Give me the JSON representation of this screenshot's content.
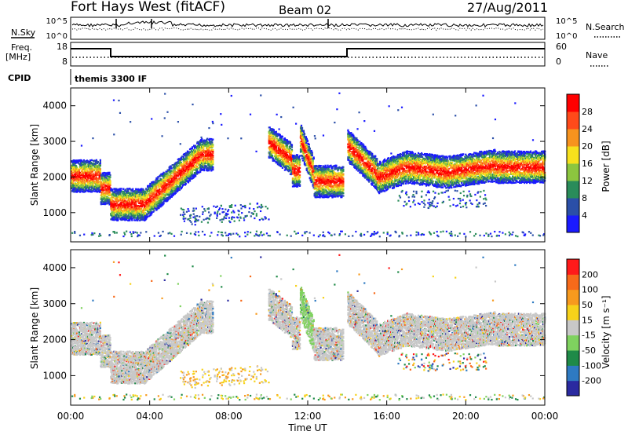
{
  "header": {
    "station": "Fort Hays West (fitACF)",
    "beam": "Beam 02",
    "date": "27/Aug/2011"
  },
  "noise_panel": {
    "left_label": "N.Sky",
    "right_label": "N.Search",
    "ticks_left": [
      "10^5",
      "10^0"
    ],
    "ticks_right": [
      "10^5",
      "10^0"
    ]
  },
  "freq_panel": {
    "left_label_1": "Freq.",
    "left_label_2": "[MHz]",
    "right_label": "Nave",
    "ticks_left": [
      "18",
      "8"
    ],
    "ticks_right": [
      "60",
      "0"
    ]
  },
  "cpid_panel": {
    "label": "CPID",
    "program": "themis 3300 IF"
  },
  "chart_data": [
    {
      "type": "heatmap",
      "name": "power",
      "ylabel": "Slant Range [km]",
      "ytick_labels": [
        "1000",
        "2000",
        "3000",
        "4000"
      ],
      "ylim": [
        180,
        4500
      ],
      "colorbar_title": "Power [dB]",
      "colorbar_ticks": [
        "4",
        "8",
        "12",
        "16",
        "20",
        "24",
        "28"
      ],
      "colorbar_colors": [
        "#1a1aff",
        "#2b4fa8",
        "#2a8c5a",
        "#8cc63f",
        "#f7e11d",
        "#f7931e",
        "#ff4a1a",
        "#ff0000"
      ]
    },
    {
      "type": "heatmap",
      "name": "velocity",
      "ylabel": "Slant Range [km]",
      "ytick_labels": [
        "1000",
        "2000",
        "3000",
        "4000"
      ],
      "ylim": [
        180,
        4500
      ],
      "colorbar_title": "Velocity [m s⁻¹]",
      "colorbar_ticks": [
        "200",
        "100",
        "50",
        "15",
        "-15",
        "-50",
        "-100",
        "-200"
      ],
      "colorbar_colors": [
        "#2a2aa0",
        "#2e7ac2",
        "#1f8a48",
        "#7fd25f",
        "#c8c8c8",
        "#f7d21a",
        "#f79a1e",
        "#f76a1a",
        "#ff1a1a"
      ]
    }
  ],
  "xaxis": {
    "label": "Time UT",
    "ticks": [
      "00:00",
      "04:00",
      "08:00",
      "12:00",
      "16:00",
      "20:00",
      "00:00"
    ]
  }
}
